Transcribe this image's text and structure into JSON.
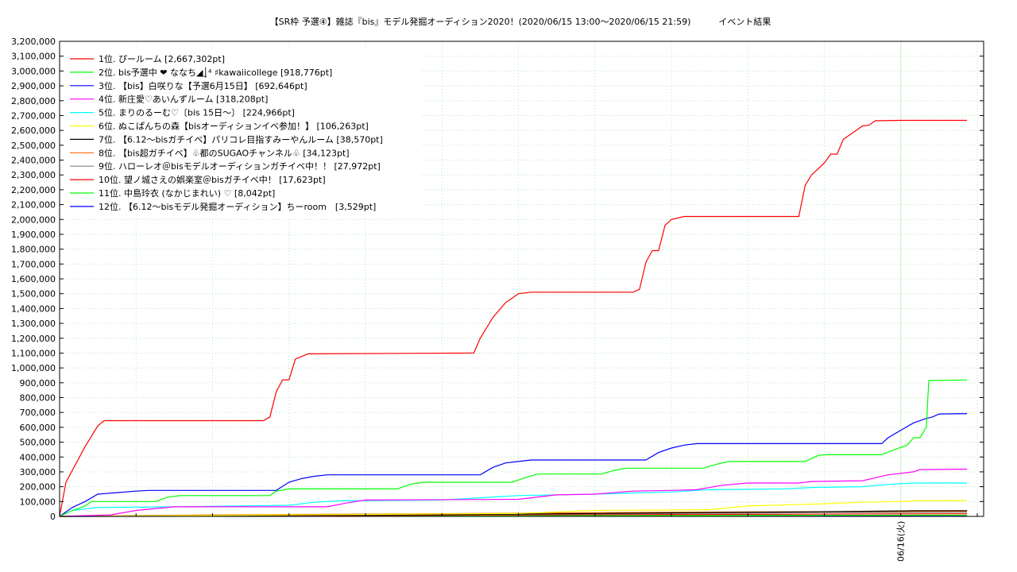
{
  "chart_data": {
    "type": "line",
    "title": "【SR枠 予選④】雑誌『bis』モデル発掘オーディション2020！(2020/06/15 13:00～2020/06/15 21:59)",
    "subtitle": "イベント結果",
    "ylim": [
      0,
      3200000
    ],
    "y_ticks": [
      "0",
      "100,000",
      "200,000",
      "300,000",
      "400,000",
      "500,000",
      "600,000",
      "700,000",
      "800,000",
      "900,000",
      "1,000,000",
      "1,100,000",
      "1,200,000",
      "1,300,000",
      "1,400,000",
      "1,500,000",
      "1,600,000",
      "1,700,000",
      "1,800,000",
      "1,900,000",
      "2,000,000",
      "2,100,000",
      "2,200,000",
      "2,300,000",
      "2,400,000",
      "2,500,000",
      "2,600,000",
      "2,700,000",
      "2,800,000",
      "2,900,000",
      "3,000,000",
      "3,100,000",
      "3,200,000"
    ],
    "x_range": [
      "2020/06/15 13:00",
      "2020/06/16 00:00"
    ],
    "x_tick_labels": [
      {
        "x": "2020/06/16 00:00",
        "label": "06/16(火)"
      }
    ],
    "grid": true,
    "legend_position": "top-left",
    "series": [
      {
        "name": "1位. ぴールーム [2,667,302pt]",
        "color": "#ff0000",
        "points": [
          [
            "13:00",
            0
          ],
          [
            "13:05",
            230000
          ],
          [
            "13:20",
            470000
          ],
          [
            "13:30",
            610000
          ],
          [
            "13:35",
            645000
          ],
          [
            "15:40",
            645000
          ],
          [
            "15:45",
            670000
          ],
          [
            "15:50",
            840000
          ],
          [
            "15:55",
            920000
          ],
          [
            "16:00",
            920000
          ],
          [
            "16:05",
            1060000
          ],
          [
            "16:15",
            1095000
          ],
          [
            "18:25",
            1100000
          ],
          [
            "18:30",
            1200000
          ],
          [
            "18:40",
            1340000
          ],
          [
            "18:50",
            1440000
          ],
          [
            "19:00",
            1500000
          ],
          [
            "19:10",
            1510000
          ],
          [
            "20:30",
            1510000
          ],
          [
            "20:35",
            1530000
          ],
          [
            "20:40",
            1710000
          ],
          [
            "20:45",
            1790000
          ],
          [
            "20:50",
            1790000
          ],
          [
            "20:55",
            1960000
          ],
          [
            "21:00",
            2000000
          ],
          [
            "21:10",
            2020000
          ],
          [
            "22:40",
            2020000
          ],
          [
            "22:45",
            2230000
          ],
          [
            "22:50",
            2300000
          ],
          [
            "23:00",
            2380000
          ],
          [
            "23:05",
            2440000
          ],
          [
            "23:10",
            2440000
          ],
          [
            "23:15",
            2540000
          ],
          [
            "23:25",
            2600000
          ],
          [
            "23:30",
            2630000
          ],
          [
            "23:35",
            2635000
          ],
          [
            "23:40",
            2665000
          ],
          [
            "23:59",
            2667302
          ],
          [
            "00:52",
            2667302
          ]
        ]
      },
      {
        "name": "2位. bis予選中 ❤ ななち◢͟│⁴ ♯kawaiicollege [918,776pt]",
        "color": "#00ff00",
        "points": [
          [
            "13:00",
            0
          ],
          [
            "13:10",
            40000
          ],
          [
            "13:20",
            70000
          ],
          [
            "13:25",
            100000
          ],
          [
            "14:15",
            100000
          ],
          [
            "14:25",
            130000
          ],
          [
            "14:35",
            140000
          ],
          [
            "15:45",
            140000
          ],
          [
            "15:50",
            170000
          ],
          [
            "16:00",
            185000
          ],
          [
            "17:25",
            185000
          ],
          [
            "17:35",
            215000
          ],
          [
            "17:45",
            230000
          ],
          [
            "18:55",
            230000
          ],
          [
            "19:05",
            260000
          ],
          [
            "19:15",
            285000
          ],
          [
            "20:05",
            285000
          ],
          [
            "20:15",
            310000
          ],
          [
            "20:25",
            325000
          ],
          [
            "21:25",
            325000
          ],
          [
            "21:35",
            350000
          ],
          [
            "21:45",
            370000
          ],
          [
            "22:45",
            370000
          ],
          [
            "22:55",
            410000
          ],
          [
            "23:00",
            415000
          ],
          [
            "23:45",
            415000
          ],
          [
            "23:55",
            450000
          ],
          [
            "24:05",
            480000
          ],
          [
            "24:10",
            530000
          ],
          [
            "24:15",
            530000
          ],
          [
            "24:20",
            600000
          ],
          [
            "24:22",
            915000
          ],
          [
            "24:52",
            918776
          ]
        ]
      },
      {
        "name": "3位. 【bis】白咲りな【予選6月15日】 [692,646pt]",
        "color": "#0000ff",
        "points": [
          [
            "13:00",
            0
          ],
          [
            "13:10",
            60000
          ],
          [
            "13:20",
            100000
          ],
          [
            "13:30",
            150000
          ],
          [
            "13:45",
            160000
          ],
          [
            "14:00",
            170000
          ],
          [
            "14:10",
            175000
          ],
          [
            "15:50",
            175000
          ],
          [
            "16:00",
            230000
          ],
          [
            "16:10",
            255000
          ],
          [
            "16:20",
            270000
          ],
          [
            "16:30",
            280000
          ],
          [
            "18:30",
            280000
          ],
          [
            "18:40",
            330000
          ],
          [
            "18:50",
            360000
          ],
          [
            "19:00",
            370000
          ],
          [
            "19:10",
            380000
          ],
          [
            "20:40",
            380000
          ],
          [
            "20:50",
            430000
          ],
          [
            "21:00",
            460000
          ],
          [
            "21:10",
            480000
          ],
          [
            "21:20",
            490000
          ],
          [
            "23:45",
            490000
          ],
          [
            "23:50",
            530000
          ],
          [
            "24:00",
            580000
          ],
          [
            "24:10",
            630000
          ],
          [
            "24:20",
            660000
          ],
          [
            "24:25",
            670000
          ],
          [
            "24:30",
            690000
          ],
          [
            "24:52",
            692646
          ]
        ]
      },
      {
        "name": "4位. 新庄愛♡あいんずルーム [318,208pt]",
        "color": "#ff00ff",
        "points": [
          [
            "13:00",
            0
          ],
          [
            "13:40",
            10000
          ],
          [
            "14:00",
            40000
          ],
          [
            "14:30",
            65000
          ],
          [
            "16:30",
            65000
          ],
          [
            "16:45",
            90000
          ],
          [
            "17:00",
            110000
          ],
          [
            "19:00",
            115000
          ],
          [
            "19:30",
            145000
          ],
          [
            "20:00",
            150000
          ],
          [
            "20:30",
            170000
          ],
          [
            "21:00",
            175000
          ],
          [
            "21:20",
            180000
          ],
          [
            "21:40",
            210000
          ],
          [
            "22:00",
            225000
          ],
          [
            "22:40",
            225000
          ],
          [
            "22:50",
            235000
          ],
          [
            "23:30",
            240000
          ],
          [
            "23:40",
            260000
          ],
          [
            "23:50",
            280000
          ],
          [
            "24:00",
            290000
          ],
          [
            "24:10",
            300000
          ],
          [
            "24:15",
            315000
          ],
          [
            "24:52",
            318208
          ]
        ]
      },
      {
        "name": "5位. まりのるーむ♡〔bis 15日〜〕 [224,966pt]",
        "color": "#00ffff",
        "points": [
          [
            "13:00",
            0
          ],
          [
            "13:10",
            40000
          ],
          [
            "13:30",
            60000
          ],
          [
            "14:30",
            65000
          ],
          [
            "16:00",
            75000
          ],
          [
            "16:20",
            95000
          ],
          [
            "16:40",
            105000
          ],
          [
            "18:00",
            110000
          ],
          [
            "19:00",
            140000
          ],
          [
            "20:00",
            150000
          ],
          [
            "21:00",
            165000
          ],
          [
            "21:30",
            180000
          ],
          [
            "22:30",
            185000
          ],
          [
            "22:50",
            195000
          ],
          [
            "23:30",
            200000
          ],
          [
            "23:50",
            215000
          ],
          [
            "24:00",
            220000
          ],
          [
            "24:10",
            225000
          ],
          [
            "24:52",
            224966
          ]
        ]
      },
      {
        "name": "6位. ぬこぱんちの森【bisオーディションイベ参加！】 [106,263pt]",
        "color": "#ffff00",
        "points": [
          [
            "13:00",
            0
          ],
          [
            "19:00",
            20000
          ],
          [
            "20:00",
            40000
          ],
          [
            "21:30",
            45000
          ],
          [
            "22:00",
            70000
          ],
          [
            "23:00",
            85000
          ],
          [
            "23:30",
            95000
          ],
          [
            "24:00",
            100000
          ],
          [
            "24:10",
            105000
          ],
          [
            "24:52",
            106263
          ]
        ]
      },
      {
        "name": "7位. 【6.12〜bisガチイベ】パリコレ目指すみーやんルーム [38,570pt]",
        "color": "#000000",
        "points": [
          [
            "13:00",
            0
          ],
          [
            "15:00",
            6000
          ],
          [
            "18:00",
            12000
          ],
          [
            "20:00",
            20000
          ],
          [
            "22:00",
            28000
          ],
          [
            "23:30",
            34000
          ],
          [
            "24:10",
            38000
          ],
          [
            "24:52",
            38570
          ]
        ]
      },
      {
        "name": "8位. 【bis超ガチイベ】♧都のSUGAOチャンネル♧ [34,123pt]",
        "color": "#ff6600",
        "points": [
          [
            "13:00",
            0
          ],
          [
            "15:00",
            10000
          ],
          [
            "18:00",
            18000
          ],
          [
            "20:00",
            25000
          ],
          [
            "22:00",
            30000
          ],
          [
            "24:00",
            33000
          ],
          [
            "24:52",
            34123
          ]
        ]
      },
      {
        "name": "9位. ハローレオ＠bisモデルオーディションガチイベ中！！ [27,972pt]",
        "color": "#808080",
        "points": [
          [
            "13:00",
            0
          ],
          [
            "15:00",
            5000
          ],
          [
            "18:00",
            12000
          ],
          [
            "21:00",
            20000
          ],
          [
            "23:00",
            25000
          ],
          [
            "24:52",
            27972
          ]
        ]
      },
      {
        "name": "10位. 望ノ城さえの娯楽室＠bisガチイベ中！ [17,623pt]",
        "color": "#ff0000",
        "points": [
          [
            "13:00",
            0
          ],
          [
            "16:00",
            5000
          ],
          [
            "19:00",
            10000
          ],
          [
            "22:00",
            14000
          ],
          [
            "24:00",
            17000
          ],
          [
            "24:52",
            17623
          ]
        ]
      },
      {
        "name": "11位. 中島玲衣 (なかじまれい) ♡ [8,042pt]",
        "color": "#00ff00",
        "points": [
          [
            "13:00",
            0
          ],
          [
            "17:00",
            3000
          ],
          [
            "21:00",
            6000
          ],
          [
            "24:00",
            8000
          ],
          [
            "24:52",
            8042
          ]
        ]
      },
      {
        "name": "12位. 【6.12〜bisモデル発掘オーディション】ちーroom　[3,529pt]",
        "color": "#0000ff",
        "points": [
          [
            "13:00",
            0
          ],
          [
            "18:00",
            1500
          ],
          [
            "22:00",
            3000
          ],
          [
            "24:52",
            3529
          ]
        ]
      }
    ]
  }
}
